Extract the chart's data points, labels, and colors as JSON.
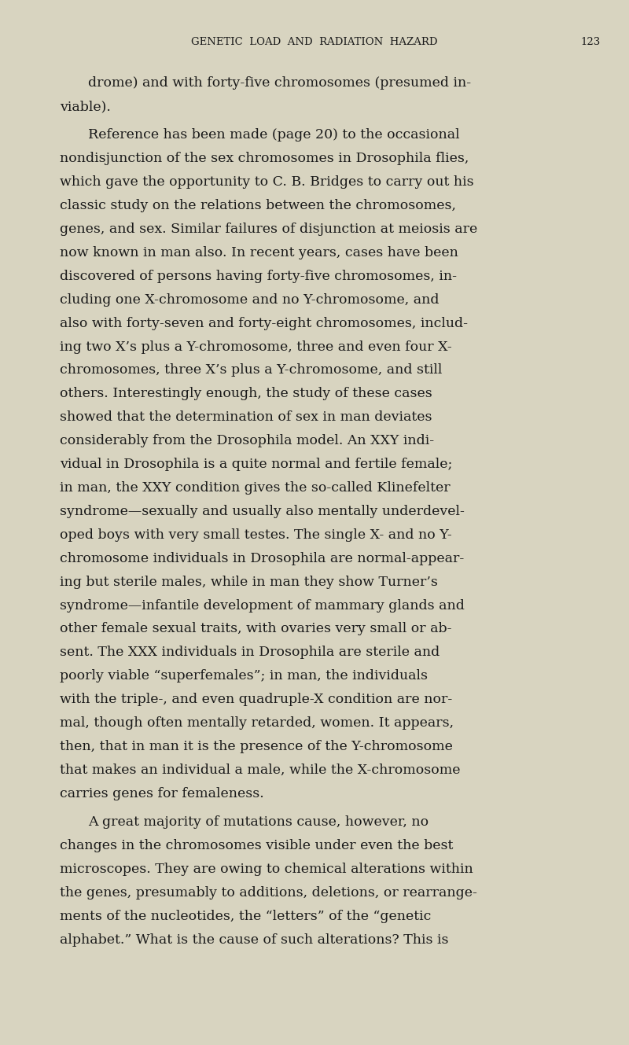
{
  "bg_color": "#d8d4c0",
  "text_color": "#1a1a1a",
  "header_text": "GENETIC  LOAD  AND  RADIATION  HAZARD",
  "page_number": "123",
  "header_font_size": 9.5,
  "body_font_size": 12.5,
  "figsize": [
    8.0,
    13.29
  ],
  "dpi": 100,
  "paragraphs": [
    {
      "indent": true,
      "text": "drome) and with forty-five chromosomes (presumed in-\nviable)."
    },
    {
      "indent": true,
      "text": "Reference has been made (page 20) to the occasional\nnondisjunction of the sex chromosomes in Drosophila flies,\nwhich gave the opportunity to C. B. Bridges to carry out his\nclassic study on the relations between the chromosomes,\ngenes, and sex. Similar failures of disjunction at meiosis are\nnow known in man also. In recent years, cases have been\ndiscovered of persons having forty-five chromosomes, in-\ncluding one X-chromosome and no Y-chromosome, and\nalso with forty-seven and forty-eight chromosomes, includ-\ning two X’s plus a Y-chromosome, three and even four X-\nchromosomes, three X’s plus a Y-chromosome, and still\nothers. Interestingly enough, the study of these cases\nshowed that the determination of sex in man deviates\nconsiderably from the Drosophila model. An XXY indi-\nvidual in Drosophila is a quite normal and fertile female;\nin man, the XXY condition gives the so-called Klinefelter\nsyndrome—sexually and usually also mentally underdevel-\noped boys with very small testes. The single X- and no Y-\nchromosome individuals in Drosophila are normal-appear-\ning but sterile males, while in man they show Turner’s\nsyndrome—infantile development of mammary glands and\nother female sexual traits, with ovaries very small or ab-\nsent. The XXX individuals in Drosophila are sterile and\npoorly viable “superfemales”; in man, the individuals\nwith the triple-, and even quadruple-X condition are nor-\nmal, though often mentally retarded, women. It appears,\nthen, that in man it is the presence of the Y-chromosome\nthat makes an individual a male, while the X-chromosome\ncarries genes for femaleness."
    },
    {
      "indent": true,
      "text": "A great majority of mutations cause, however, no\nchanges in the chromosomes visible under even the best\nmicroscopes. They are owing to chemical alterations within\nthe genes, presumably to additions, deletions, or rearrange-\nments of the nucleotides, the “letters” of the “genetic\nalphabet.” What is the cause of such alterations? This is"
    }
  ]
}
